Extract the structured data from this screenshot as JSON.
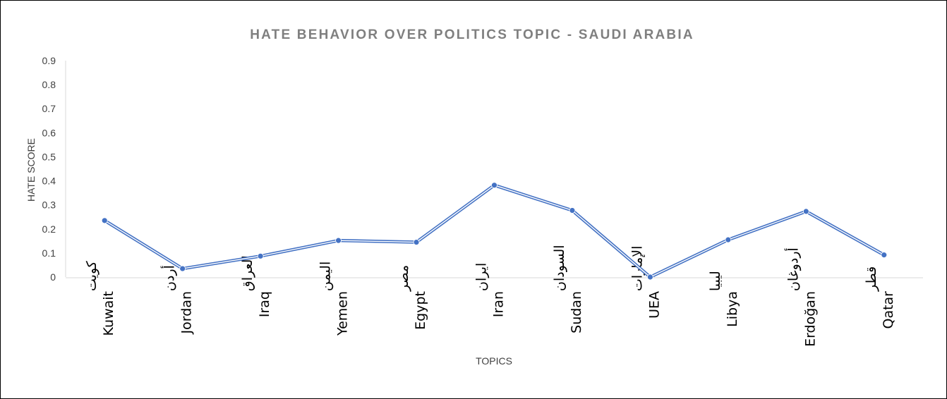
{
  "chart_data": {
    "type": "line",
    "title": "HATE BEHAVIOR OVER POLITICS TOPIC - SAUDI ARABIA",
    "xlabel": "TOPICS",
    "ylabel": "HATE SCORE",
    "ylim": [
      0,
      0.9
    ],
    "yticks": [
      "0",
      "0.1",
      "0.2",
      "0.3",
      "0.4",
      "0.5",
      "0.6",
      "0.7",
      "0.8",
      "0.9"
    ],
    "categories": [
      {
        "arabic": "كويت",
        "english": "Kuwait"
      },
      {
        "arabic": "أردن",
        "english": "Jordan"
      },
      {
        "arabic": "العراق",
        "english": "Iraq"
      },
      {
        "arabic": "اليمن",
        "english": "Yemen"
      },
      {
        "arabic": "مصر",
        "english": "Egypt"
      },
      {
        "arabic": "ايران",
        "english": "Iran"
      },
      {
        "arabic": "السودان",
        "english": "Sudan"
      },
      {
        "arabic": "الإمارات",
        "english": "UEA"
      },
      {
        "arabic": "ليبيا",
        "english": "Libya"
      },
      {
        "arabic": "أردوغان",
        "english": "Erdoğan"
      },
      {
        "arabic": "قطر",
        "english": "Qatar"
      }
    ],
    "series": [
      {
        "values": [
          0.235,
          0.035,
          0.087,
          0.152,
          0.145,
          0.382,
          0.277,
          0.0,
          0.155,
          0.273,
          0.092
        ]
      }
    ],
    "grid": false,
    "legend": "none",
    "colors": {
      "line": "#4472c4",
      "line_highlight": "#ffffff",
      "title": "#7f7f7f",
      "axis_text": "#404040",
      "axis": "#d9d9d9"
    }
  }
}
